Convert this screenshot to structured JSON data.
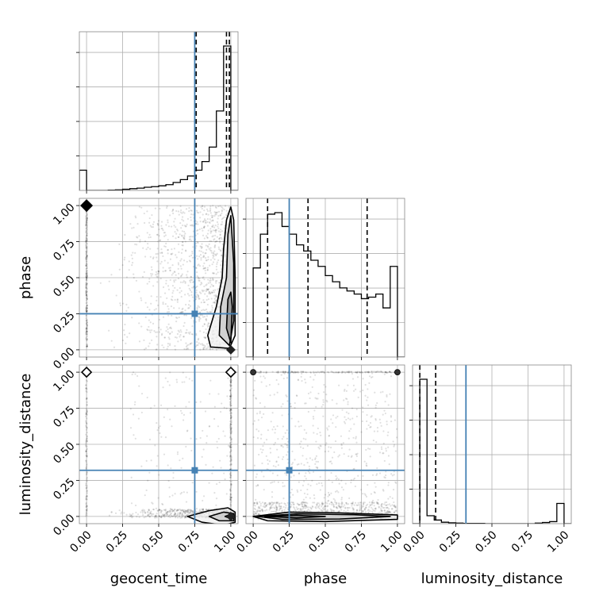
{
  "chart_data": {
    "type": "corner",
    "parameters": [
      "geocent_time",
      "phase",
      "luminosity_distance"
    ],
    "axis_labels": {
      "geocent_time": "geocent_time",
      "phase": "phase",
      "luminosity_distance": "luminosity_distance"
    },
    "range": [
      -0.05,
      1.05
    ],
    "ticks": [
      0.0,
      0.25,
      0.5,
      0.75,
      1.0
    ],
    "tick_labels": [
      "0.00",
      "0.25",
      "0.50",
      "0.75",
      "1.00"
    ],
    "grid": true,
    "truths": {
      "geocent_time": 0.75,
      "phase": 0.25,
      "luminosity_distance": 0.32
    },
    "truth_color": "#4682b4",
    "histogram_color": "#000000",
    "histograms": {
      "geocent_time": {
        "bin_edges": [
          -0.05,
          0.0,
          0.05,
          0.1,
          0.15,
          0.2,
          0.25,
          0.3,
          0.35,
          0.4,
          0.45,
          0.5,
          0.55,
          0.6,
          0.65,
          0.7,
          0.75,
          0.8,
          0.85,
          0.9,
          0.95,
          1.0,
          1.05
        ],
        "counts": [
          0.14,
          0.0,
          0.0,
          0.0,
          0.002,
          0.004,
          0.008,
          0.012,
          0.016,
          0.022,
          0.026,
          0.032,
          0.04,
          0.055,
          0.075,
          0.1,
          0.14,
          0.2,
          0.3,
          0.55,
          1.0,
          0.0
        ],
        "quantiles": [
          0.76,
          0.97,
          0.99
        ]
      },
      "phase": {
        "bin_edges": [
          -0.05,
          0.0,
          0.05,
          0.1,
          0.15,
          0.2,
          0.25,
          0.3,
          0.35,
          0.4,
          0.45,
          0.5,
          0.55,
          0.6,
          0.65,
          0.7,
          0.75,
          0.8,
          0.85,
          0.9,
          0.95,
          1.0,
          1.05
        ],
        "counts": [
          0.0,
          0.58,
          0.8,
          0.93,
          0.94,
          0.85,
          0.8,
          0.73,
          0.69,
          0.63,
          0.59,
          0.53,
          0.49,
          0.45,
          0.43,
          0.41,
          0.38,
          0.39,
          0.41,
          0.32,
          0.59,
          0.0
        ],
        "quantiles": [
          0.1,
          0.38,
          0.79
        ]
      },
      "luminosity_distance": {
        "bin_edges": [
          -0.05,
          0.0,
          0.05,
          0.1,
          0.15,
          0.2,
          0.25,
          0.3,
          0.35,
          0.4,
          0.45,
          0.5,
          0.55,
          0.6,
          0.65,
          0.7,
          0.75,
          0.8,
          0.85,
          0.9,
          0.95,
          1.0,
          1.05
        ],
        "counts": [
          0.0,
          1.0,
          0.055,
          0.025,
          0.01,
          0.006,
          0.004,
          0.002,
          0.002,
          0.002,
          0.0,
          0.0,
          0.0,
          0.0,
          0.0,
          0.0,
          0.0,
          0.004,
          0.008,
          0.014,
          0.14,
          0.0
        ],
        "quantiles": [
          0.0,
          0.11
        ]
      }
    },
    "contour_pairs": [
      {
        "x": "geocent_time",
        "y": "phase",
        "contours": [
          [
            [
              0.99,
              0.01
            ],
            [
              1.03,
              0.1
            ],
            [
              1.03,
              0.5
            ],
            [
              1.02,
              0.9
            ],
            [
              1.0,
              0.99
            ],
            [
              0.97,
              0.9
            ],
            [
              0.95,
              0.7
            ],
            [
              0.94,
              0.5
            ],
            [
              0.9,
              0.3
            ],
            [
              0.84,
              0.1
            ],
            [
              0.86,
              0.02
            ],
            [
              0.99,
              0.01
            ]
          ],
          [
            [
              0.99,
              0.03
            ],
            [
              1.02,
              0.2
            ],
            [
              1.02,
              0.6
            ],
            [
              1.0,
              0.93
            ],
            [
              0.98,
              0.8
            ],
            [
              0.97,
              0.5
            ],
            [
              0.93,
              0.3
            ],
            [
              0.92,
              0.1
            ],
            [
              0.99,
              0.03
            ]
          ],
          [
            [
              1.0,
              0.05
            ],
            [
              1.01,
              0.3
            ],
            [
              1.0,
              0.4
            ],
            [
              0.98,
              0.35
            ],
            [
              0.97,
              0.15
            ],
            [
              1.0,
              0.05
            ]
          ]
        ],
        "point_clusters": [
          {
            "x_range": [
              0.05,
              1.0
            ],
            "y_range": [
              0.0,
              1.0
            ],
            "count": 1200,
            "x_bias": "toward-1"
          },
          {
            "x_range": [
              -0.005,
              0.005
            ],
            "y_range": [
              0.02,
              1.0
            ],
            "count": 250
          },
          {
            "x_range": [
              -0.01,
              0.01
            ],
            "y_range": [
              0.98,
              1.02
            ],
            "count": 120
          }
        ],
        "markers": [
          {
            "x": 0.0,
            "y": 1.0,
            "style": "filled-diamond"
          },
          {
            "x": 1.0,
            "y": 0.0,
            "style": "filled-diamond-small"
          }
        ]
      },
      {
        "x": "geocent_time",
        "y": "luminosity_distance",
        "contours": [
          [
            [
              0.7,
              0.0
            ],
            [
              0.85,
              0.04
            ],
            [
              0.98,
              0.06
            ],
            [
              1.03,
              0.03
            ],
            [
              1.03,
              -0.04
            ],
            [
              0.95,
              -0.06
            ],
            [
              0.8,
              -0.04
            ],
            [
              0.7,
              0.0
            ]
          ],
          [
            [
              0.85,
              0.0
            ],
            [
              0.95,
              0.03
            ],
            [
              1.02,
              0.02
            ],
            [
              1.02,
              -0.03
            ],
            [
              0.92,
              -0.03
            ],
            [
              0.85,
              0.0
            ]
          ],
          [
            [
              0.96,
              0.0
            ],
            [
              1.0,
              0.015
            ],
            [
              1.015,
              0.0
            ],
            [
              1.0,
              -0.015
            ],
            [
              0.96,
              0.0
            ]
          ]
        ],
        "point_clusters": [
          {
            "x_range": [
              0.05,
              1.0
            ],
            "y_range": [
              -0.01,
              0.05
            ],
            "count": 500,
            "x_bias": "toward-1"
          },
          {
            "x_range": [
              -0.005,
              0.005
            ],
            "y_range": [
              0.0,
              1.0
            ],
            "count": 120
          },
          {
            "x_range": [
              0.995,
              1.005
            ],
            "y_range": [
              0.05,
              1.0
            ],
            "count": 200
          },
          {
            "x_range": [
              0.3,
              1.0
            ],
            "y_range": [
              0.05,
              1.0
            ],
            "count": 150
          }
        ],
        "markers": [
          {
            "x": 0.0,
            "y": 1.0,
            "style": "open-diamond"
          },
          {
            "x": 1.0,
            "y": 1.0,
            "style": "open-diamond"
          },
          {
            "x": 1.0,
            "y": 0.0,
            "style": "filled-diamond-small"
          }
        ]
      },
      {
        "x": "phase",
        "y": "luminosity_distance",
        "contours": [
          [
            [
              0.0,
              0.0
            ],
            [
              0.25,
              0.03
            ],
            [
              0.6,
              0.025
            ],
            [
              1.0,
              0.01
            ],
            [
              1.0,
              -0.02
            ],
            [
              0.5,
              -0.035
            ],
            [
              0.1,
              -0.03
            ],
            [
              0.0,
              0.0
            ]
          ],
          [
            [
              0.03,
              0.0
            ],
            [
              0.3,
              0.018
            ],
            [
              0.7,
              0.012
            ],
            [
              0.95,
              0.0
            ],
            [
              0.6,
              -0.018
            ],
            [
              0.2,
              -0.02
            ],
            [
              0.03,
              0.0
            ]
          ],
          [
            [
              0.08,
              0.0
            ],
            [
              0.3,
              0.008
            ],
            [
              0.5,
              0.0
            ],
            [
              0.3,
              -0.01
            ],
            [
              0.08,
              0.0
            ]
          ]
        ],
        "point_clusters": [
          {
            "x_range": [
              0.0,
              1.0
            ],
            "y_range": [
              -0.02,
              0.1
            ],
            "count": 700
          },
          {
            "x_range": [
              0.0,
              1.0
            ],
            "y_range": [
              0.1,
              1.0
            ],
            "count": 500
          },
          {
            "x_range": [
              0.0,
              1.0
            ],
            "y_range": [
              0.995,
              1.005
            ],
            "count": 150
          }
        ],
        "markers": [
          {
            "x": 0.0,
            "y": 1.0,
            "style": "filled-circle"
          },
          {
            "x": 1.0,
            "y": 1.0,
            "style": "filled-circle"
          }
        ]
      }
    ]
  }
}
